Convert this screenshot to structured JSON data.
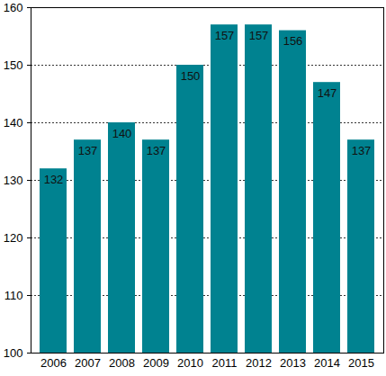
{
  "chart_data": {
    "type": "bar",
    "categories": [
      "2006",
      "2007",
      "2008",
      "2009",
      "2010",
      "2011",
      "2012",
      "2013",
      "2014",
      "2015"
    ],
    "values": [
      132,
      137,
      140,
      137,
      150,
      157,
      157,
      156,
      147,
      137
    ],
    "color": "#008290",
    "ylim": [
      100,
      160
    ],
    "yticks": [
      100,
      110,
      120,
      130,
      140,
      150,
      160
    ],
    "grid": true,
    "data_labels": true
  }
}
